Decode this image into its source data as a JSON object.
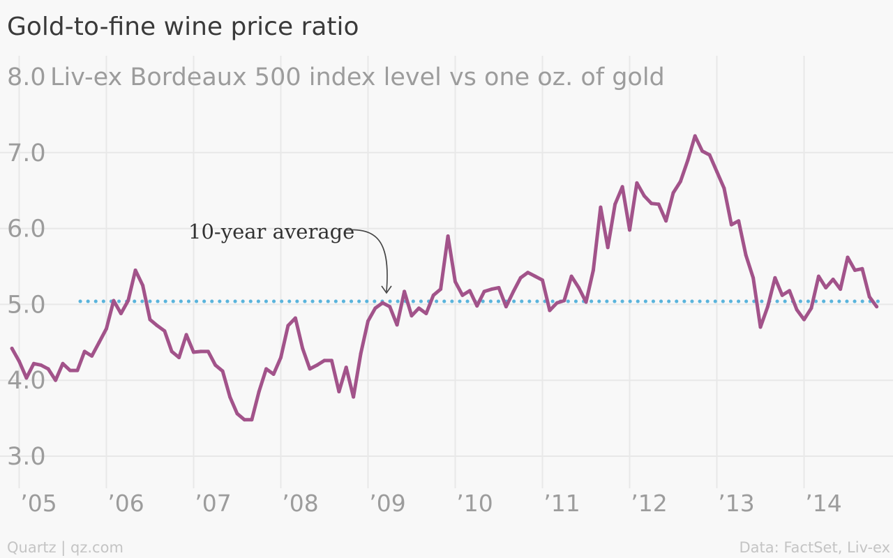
{
  "chart_data": {
    "type": "line",
    "title": "Gold-to-fine wine price ratio",
    "ylabel": "Liv-ex Bordeaux 500 index level vs one oz. of gold",
    "ylim": [
      3.0,
      8.0
    ],
    "yticks": [
      "8.0",
      "7.0",
      "6.0",
      "5.0",
      "4.0",
      "3.0"
    ],
    "ytick_values": [
      8.0,
      7.0,
      6.0,
      5.0,
      4.0,
      3.0
    ],
    "xlim": [
      2004.9,
      2014.9
    ],
    "xticks": [
      "’05",
      "’06",
      "’07",
      "’08",
      "’09",
      "’10",
      "’11",
      "’12",
      "’13",
      "’14"
    ],
    "xtick_values": [
      2005,
      2006,
      2007,
      2008,
      2009,
      2010,
      2011,
      2012,
      2013,
      2014
    ],
    "grid": true,
    "colors": {
      "series": "#a2538a",
      "average": "#5ab4dc",
      "grid": "#e8e8e8"
    },
    "series": [
      {
        "name": "",
        "x": [
          2004.917,
          2005.0,
          2005.083,
          2005.167,
          2005.25,
          2005.333,
          2005.417,
          2005.5,
          2005.583,
          2005.667,
          2005.75,
          2005.833,
          2005.917,
          2006.0,
          2006.083,
          2006.167,
          2006.25,
          2006.333,
          2006.417,
          2006.5,
          2006.583,
          2006.667,
          2006.75,
          2006.833,
          2006.917,
          2007.0,
          2007.083,
          2007.167,
          2007.25,
          2007.333,
          2007.417,
          2007.5,
          2007.583,
          2007.667,
          2007.75,
          2007.833,
          2007.917,
          2008.0,
          2008.083,
          2008.167,
          2008.25,
          2008.333,
          2008.417,
          2008.5,
          2008.583,
          2008.667,
          2008.75,
          2008.833,
          2008.917,
          2009.0,
          2009.083,
          2009.167,
          2009.25,
          2009.333,
          2009.417,
          2009.5,
          2009.583,
          2009.667,
          2009.75,
          2009.833,
          2009.917,
          2010.0,
          2010.083,
          2010.167,
          2010.25,
          2010.333,
          2010.417,
          2010.5,
          2010.583,
          2010.667,
          2010.75,
          2010.833,
          2010.917,
          2011.0,
          2011.083,
          2011.167,
          2011.25,
          2011.333,
          2011.417,
          2011.5,
          2011.583,
          2011.667,
          2011.75,
          2011.833,
          2011.917,
          2012.0,
          2012.083,
          2012.167,
          2012.25,
          2012.333,
          2012.417,
          2012.5,
          2012.583,
          2012.667,
          2012.75,
          2012.833,
          2012.917,
          2013.0,
          2013.083,
          2013.167,
          2013.25,
          2013.333,
          2013.417,
          2013.5,
          2013.583,
          2013.667,
          2013.75,
          2013.833,
          2013.917,
          2014.0,
          2014.083,
          2014.167,
          2014.25,
          2014.333,
          2014.417,
          2014.5,
          2014.583,
          2014.667,
          2014.75,
          2014.833
        ],
        "y": [
          4.42,
          4.25,
          4.03,
          4.22,
          4.2,
          4.15,
          4.0,
          4.22,
          4.13,
          4.13,
          4.38,
          4.32,
          4.5,
          4.68,
          5.05,
          4.88,
          5.05,
          5.45,
          5.25,
          4.8,
          4.72,
          4.65,
          4.38,
          4.3,
          4.6,
          4.37,
          4.38,
          4.38,
          4.2,
          4.12,
          3.78,
          3.56,
          3.48,
          3.48,
          3.85,
          4.15,
          4.08,
          4.3,
          4.72,
          4.82,
          4.42,
          4.15,
          4.2,
          4.26,
          4.26,
          3.85,
          4.17,
          3.78,
          4.35,
          4.78,
          4.95,
          5.02,
          4.97,
          4.73,
          5.17,
          4.85,
          4.95,
          4.88,
          5.12,
          5.2,
          5.9,
          5.3,
          5.12,
          5.18,
          4.98,
          5.17,
          5.2,
          5.22,
          4.97,
          5.17,
          5.35,
          5.42,
          5.37,
          5.32,
          4.92,
          5.02,
          5.05,
          5.37,
          5.22,
          5.03,
          5.45,
          6.28,
          5.75,
          6.32,
          6.55,
          5.98,
          6.6,
          6.43,
          6.33,
          6.32,
          6.1,
          6.47,
          6.62,
          6.9,
          7.22,
          7.02,
          6.97,
          6.75,
          6.53,
          6.05,
          6.1,
          5.65,
          5.35,
          4.7,
          4.97,
          5.35,
          5.12,
          5.18,
          4.93,
          4.8,
          4.95,
          5.37,
          5.22,
          5.33,
          5.2,
          5.62,
          5.45,
          5.47,
          5.1,
          4.97
        ]
      }
    ],
    "reference_lines": [
      {
        "label": "10-year average",
        "y": 5.04
      }
    ],
    "annotation": {
      "text": "10-year average"
    },
    "footer": {
      "left": "Quartz | qz.com",
      "right": "Data: FactSet, Liv-ex"
    }
  }
}
